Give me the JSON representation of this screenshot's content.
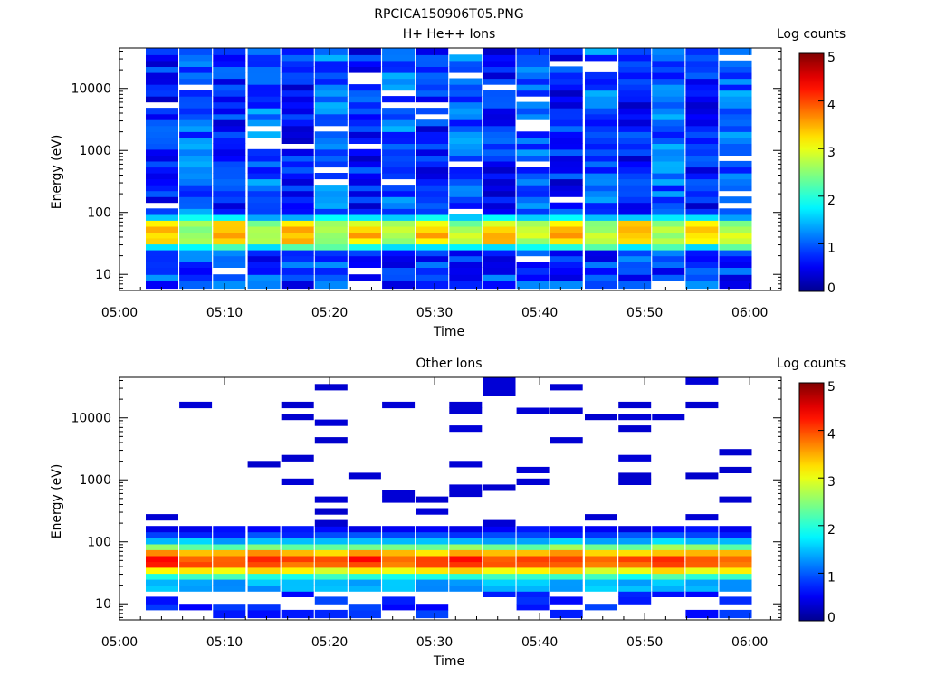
{
  "title": "RPCICA150906T05.PNG",
  "colors": {
    "jet_stops": [
      "#00008f",
      "#0000ff",
      "#00ffff",
      "#ffff00",
      "#ff0000",
      "#800000"
    ],
    "grid_background": "#ffffff",
    "axis": "#000000"
  },
  "chart_data": [
    {
      "type": "heatmap",
      "title": "H+ He++ Ions",
      "xlabel": "Time",
      "ylabel": "Energy (eV)",
      "x_ticks": [
        "05:00",
        "05:10",
        "05:20",
        "05:30",
        "05:40",
        "05:50",
        "06:00"
      ],
      "x_range_minutes": [
        0,
        63
      ],
      "y_scale": "log",
      "y_range": [
        5.5,
        45000
      ],
      "y_ticks": [
        "10",
        "100",
        "1000",
        "10000"
      ],
      "colorbar": {
        "label": "Log counts",
        "range": [
          0,
          5
        ],
        "ticks": [
          "0",
          "1",
          "2",
          "3",
          "4",
          "5"
        ]
      },
      "time_bins_minutes": [
        2.5,
        5.7,
        8.9,
        12.2,
        15.4,
        18.6,
        21.8,
        25.0,
        28.2,
        31.4,
        34.6,
        37.8,
        41.0,
        44.3,
        47.5,
        50.7,
        53.9,
        57.1
      ],
      "energy_bins_eV": [
        6,
        8,
        10,
        13,
        16,
        20,
        25,
        31,
        39,
        48,
        60,
        75,
        93,
        116,
        145,
        180,
        225,
        280,
        350,
        435,
        540,
        675,
        840,
        1050,
        1300,
        1620,
        2020,
        2520,
        3140,
        3900,
        4870,
        6060,
        7550,
        9400,
        11700,
        14600,
        18200,
        22700,
        28300,
        35200,
        45000
      ],
      "summary": "Background 0.3-1.5 log counts across 100 eV-40 keV; peak ~3.0-3.5 log counts at 30-65 eV"
    },
    {
      "type": "heatmap",
      "title": "Other Ions",
      "xlabel": "Time",
      "ylabel": "Energy (eV)",
      "x_ticks": [
        "05:00",
        "05:10",
        "05:20",
        "05:30",
        "05:40",
        "05:50",
        "06:00"
      ],
      "x_range_minutes": [
        0,
        63
      ],
      "y_scale": "log",
      "y_range": [
        5.5,
        45000
      ],
      "y_ticks": [
        "10",
        "100",
        "1000",
        "10000"
      ],
      "colorbar": {
        "label": "Log counts",
        "range": [
          0,
          5
        ],
        "ticks": [
          "0",
          "1",
          "2",
          "3",
          "4",
          "5"
        ]
      },
      "time_bins_minutes": [
        2.5,
        5.7,
        8.9,
        12.2,
        15.4,
        18.6,
        21.8,
        25.0,
        28.2,
        31.4,
        34.6,
        37.8,
        41.0,
        44.3,
        47.5,
        50.7,
        53.9,
        57.1
      ],
      "energy_bins_eV": [
        6,
        8,
        10,
        13,
        16,
        20,
        25,
        31,
        39,
        48,
        60,
        75,
        93,
        116,
        145,
        180,
        225,
        280,
        350,
        435,
        540,
        675,
        840,
        1050,
        1300,
        1620,
        2020,
        2520,
        3140,
        3900,
        4870,
        6060,
        7550,
        9400,
        11700,
        14600,
        18200,
        22700,
        28300,
        35200,
        45000
      ],
      "summary": "Main band 25-200 eV, peak ~3.5-4 log counts at 40-60 eV; sparse ~0.3 counts above 200 eV"
    }
  ]
}
